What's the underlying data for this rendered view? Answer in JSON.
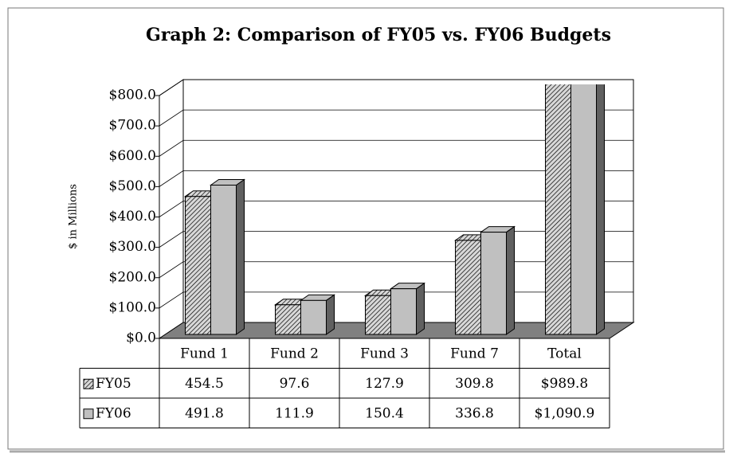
{
  "chart_data": {
    "type": "bar3d",
    "title": "Graph 2:  Comparison of FY05 vs. FY06 Budgets",
    "y_label": "$ in Millions",
    "categories": [
      "Fund 1",
      "Fund 2",
      "Fund 3",
      "Fund 7",
      "Total"
    ],
    "series": [
      {
        "name": "FY05",
        "color": "#a0a0a0",
        "pattern": "hatch",
        "values": [
          454.5,
          97.6,
          127.9,
          309.8,
          989.8
        ],
        "value_labels": [
          "454.5",
          "97.6",
          "127.9",
          "309.8",
          "$989.8"
        ]
      },
      {
        "name": "FY06",
        "color": "#c0c0c0",
        "values": [
          491.8,
          111.9,
          150.4,
          336.8,
          1090.9
        ],
        "value_labels": [
          "491.8",
          "111.9",
          "150.4",
          "336.8",
          "$1,090.9"
        ]
      }
    ],
    "ylim": [
      0,
      800
    ],
    "yticks": [
      {
        "value": 0,
        "label": "$0.0"
      },
      {
        "value": 100,
        "label": "$100.0"
      },
      {
        "value": 200,
        "label": "$200.0"
      },
      {
        "value": 300,
        "label": "$300.0"
      },
      {
        "value": 400,
        "label": "$400.0"
      },
      {
        "value": 500,
        "label": "$500.0"
      },
      {
        "value": 600,
        "label": "$600.0"
      },
      {
        "value": 700,
        "label": "$700.0"
      },
      {
        "value": 800,
        "label": "$800.0"
      }
    ],
    "grid": true
  }
}
